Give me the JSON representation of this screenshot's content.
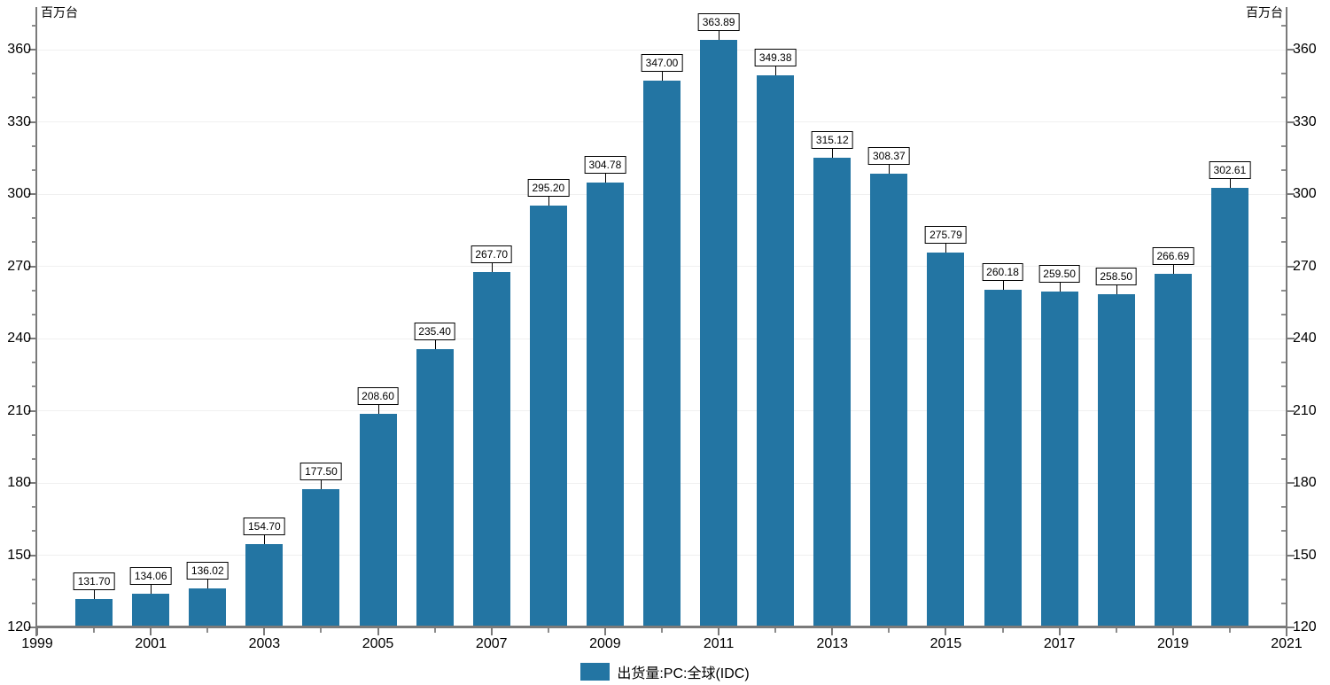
{
  "axes": {
    "unit_left": "百万台",
    "unit_right": "百万台"
  },
  "legend": {
    "label": "出货量:PC:全球(IDC)"
  },
  "chart_data": {
    "type": "bar",
    "title": "",
    "series_name": "出货量:PC:全球(IDC)",
    "unit": "百万台",
    "categories": [
      "2000",
      "2001",
      "2002",
      "2003",
      "2004",
      "2005",
      "2006",
      "2007",
      "2008",
      "2009",
      "2010",
      "2011",
      "2012",
      "2013",
      "2014",
      "2015",
      "2016",
      "2017",
      "2018",
      "2019",
      "2020"
    ],
    "values": [
      131.7,
      134.06,
      136.02,
      154.7,
      177.5,
      208.6,
      235.4,
      267.7,
      295.2,
      304.78,
      347.0,
      363.89,
      349.38,
      315.12,
      308.37,
      275.79,
      260.18,
      259.5,
      258.5,
      266.69,
      302.61
    ],
    "bar_labels": [
      "131.70",
      "134.06",
      "136.02",
      "154.70",
      "177.50",
      "208.60",
      "235.40",
      "267.70",
      "295.20",
      "304.78",
      "347.00",
      "363.89",
      "349.38",
      "315.12",
      "308.37",
      "275.79",
      "260.18",
      "259.50",
      "258.50",
      "266.69",
      "302.61"
    ],
    "x_tick_labels": [
      "1999",
      "2001",
      "2003",
      "2005",
      "2007",
      "2009",
      "2011",
      "2013",
      "2015",
      "2017",
      "2019",
      "2021"
    ],
    "x_range": [
      1999,
      2021
    ],
    "y_major_ticks": [
      120,
      150,
      180,
      210,
      240,
      270,
      300,
      330,
      360
    ],
    "y_minor_step": 10,
    "ylim": [
      120,
      377
    ],
    "xlabel": "",
    "ylabel": "百万台",
    "grid": "horizontal-major",
    "legend_position": "bottom-center",
    "bar_color": "#2375A3",
    "axis_color": "#7a7a7a",
    "minor_tick_color": "#8c8c8c",
    "grid_color": "#f0f0f0",
    "value_label_border": "#000000",
    "value_label_bg": "#ffffff"
  }
}
